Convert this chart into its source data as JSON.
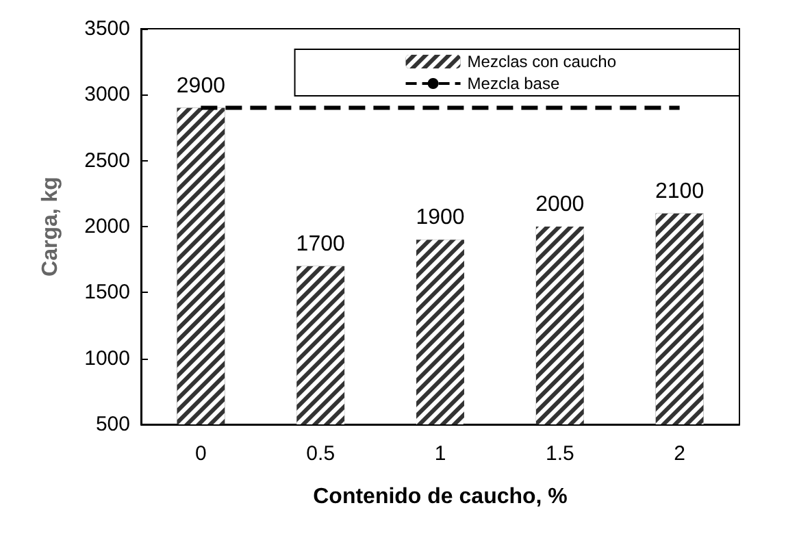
{
  "chart_data": {
    "type": "bar",
    "xlabel": "Contenido de caucho, %",
    "ylabel": "Carga, kg",
    "categories": [
      "0",
      "0.5",
      "1",
      "1.5",
      "2"
    ],
    "series": [
      {
        "name": "Mezclas con caucho",
        "color": "#333333",
        "values": [
          2900,
          1700,
          1900,
          2000,
          2100
        ],
        "value_labels": [
          "2900",
          "1700",
          "1900",
          "2000",
          "2100"
        ]
      },
      {
        "name": "Mezcla base",
        "type": "line",
        "color": "#000000",
        "line_style": "dashed",
        "marker": "none",
        "values": [
          2900,
          2900,
          2900,
          2900,
          2900
        ]
      }
    ],
    "ylim": [
      500,
      3500
    ],
    "yticks": [
      500,
      1000,
      1500,
      2000,
      2500,
      3000,
      3500
    ],
    "grid": false,
    "legend": "top right"
  }
}
